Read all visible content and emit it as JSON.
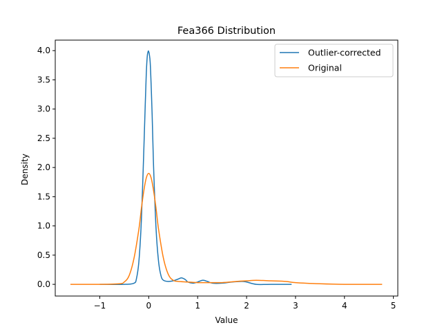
{
  "chart_data": {
    "type": "line",
    "title": "Fea366 Distribution",
    "xlabel": "Value",
    "ylabel": "Density",
    "xlim": [
      -1.91,
      5.09
    ],
    "ylim": [
      -0.2,
      4.18
    ],
    "xticks": [
      -1,
      0,
      1,
      2,
      3,
      4,
      5
    ],
    "xtick_labels": [
      "−1",
      "0",
      "1",
      "2",
      "3",
      "4",
      "5"
    ],
    "yticks": [
      0.0,
      0.5,
      1.0,
      1.5,
      2.0,
      2.5,
      3.0,
      3.5,
      4.0
    ],
    "ytick_labels": [
      "0.0",
      "0.5",
      "1.0",
      "1.5",
      "2.0",
      "2.5",
      "3.0",
      "3.5",
      "4.0"
    ],
    "grid": false,
    "legend_position": "upper right",
    "series": [
      {
        "name": "Outlier-corrected",
        "color": "#1f77b4",
        "x": [
          -1.0,
          -0.5,
          -0.3,
          -0.25,
          -0.2,
          -0.15,
          -0.1,
          -0.07,
          -0.05,
          -0.03,
          -0.01,
          0.0,
          0.01,
          0.03,
          0.05,
          0.07,
          0.1,
          0.15,
          0.2,
          0.25,
          0.3,
          0.4,
          0.5,
          0.6,
          0.67,
          0.75,
          0.8,
          0.9,
          1.0,
          1.1,
          1.2,
          1.3,
          1.5,
          1.7,
          1.9,
          2.0,
          2.2,
          2.5,
          2.92
        ],
        "y": [
          0.0,
          0.0,
          0.02,
          0.1,
          0.4,
          1.1,
          2.3,
          3.1,
          3.6,
          3.9,
          3.99,
          3.98,
          3.95,
          3.8,
          3.4,
          2.9,
          2.0,
          0.95,
          0.4,
          0.15,
          0.07,
          0.05,
          0.06,
          0.09,
          0.11,
          0.08,
          0.04,
          0.02,
          0.04,
          0.07,
          0.05,
          0.02,
          0.02,
          0.04,
          0.05,
          0.04,
          0.0,
          0.0,
          0.0
        ]
      },
      {
        "name": "Original",
        "color": "#ff7f0e",
        "x": [
          -1.6,
          -1.0,
          -0.6,
          -0.5,
          -0.4,
          -0.3,
          -0.2,
          -0.15,
          -0.1,
          -0.05,
          0.0,
          0.05,
          0.1,
          0.15,
          0.2,
          0.3,
          0.4,
          0.5,
          0.6,
          0.8,
          1.0,
          1.2,
          1.5,
          1.8,
          2.0,
          2.2,
          2.5,
          2.8,
          3.0,
          3.5,
          4.0,
          4.77
        ],
        "y": [
          0.0,
          0.0,
          0.01,
          0.04,
          0.15,
          0.45,
          0.95,
          1.3,
          1.6,
          1.82,
          1.9,
          1.82,
          1.6,
          1.3,
          0.95,
          0.45,
          0.17,
          0.07,
          0.05,
          0.04,
          0.03,
          0.03,
          0.03,
          0.05,
          0.06,
          0.07,
          0.06,
          0.05,
          0.03,
          0.01,
          0.0,
          0.0
        ]
      }
    ]
  }
}
